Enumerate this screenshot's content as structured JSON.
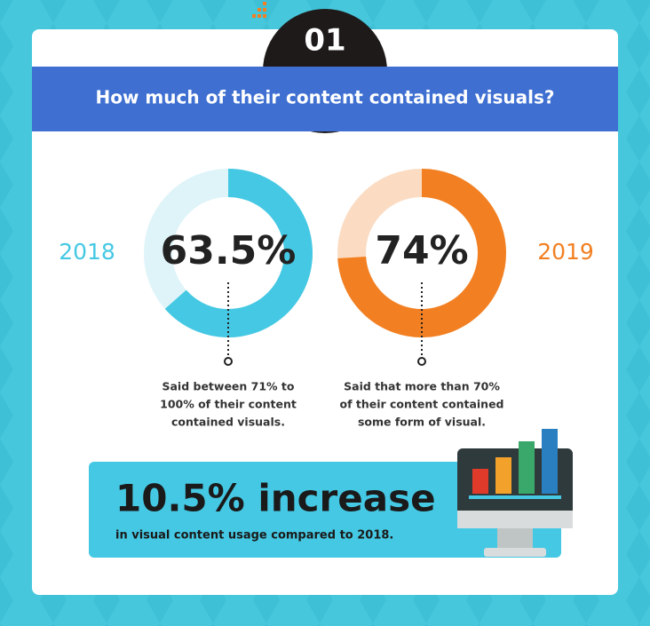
{
  "badge": "01",
  "title": "How much of their content contained visuals?",
  "chart_data": [
    {
      "type": "donut",
      "title": "2018",
      "values": [
        63.5
      ],
      "value_labels": [
        "63.5%"
      ],
      "color": "#45c8e3",
      "track_color": "#dff4f9",
      "caption": [
        "Said between 71% to",
        "100% of their content",
        "contained visuals."
      ]
    },
    {
      "type": "donut",
      "title": "2019",
      "values": [
        74
      ],
      "value_labels": [
        "74%"
      ],
      "color": "#f28022",
      "track_color": "#fbdcc3",
      "caption": [
        "Said that more than 70%",
        "of their content contained",
        "some form of visual."
      ]
    }
  ],
  "callout": {
    "headline": "10.5% increase",
    "text": "in visual content usage compared to 2018."
  }
}
